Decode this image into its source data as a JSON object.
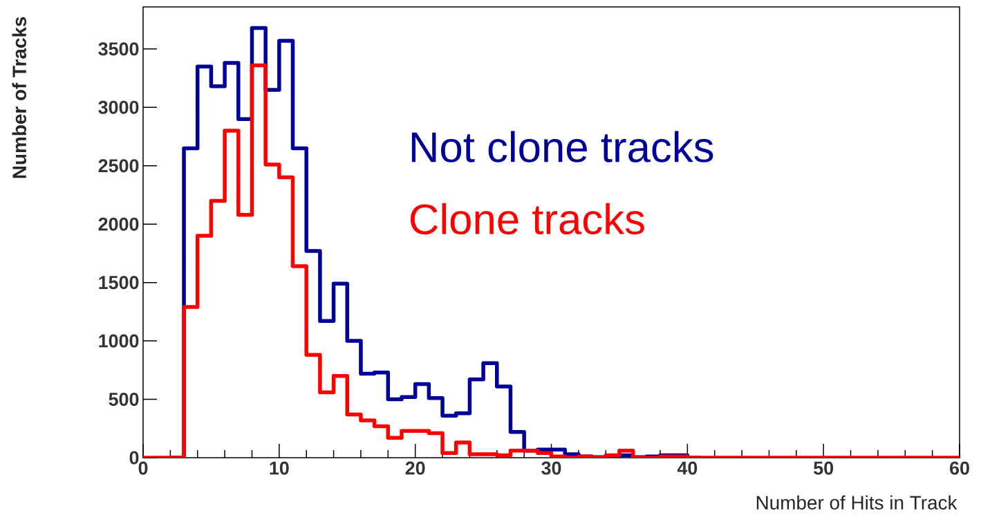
{
  "chart_data": {
    "type": "step",
    "xlabel": "Number of Hits in Track",
    "ylabel": "Number of Tracks",
    "x": [
      0,
      1,
      2,
      3,
      4,
      5,
      6,
      7,
      8,
      9,
      10,
      11,
      12,
      13,
      14,
      15,
      16,
      17,
      18,
      19,
      20,
      21,
      22,
      23,
      24,
      25,
      26,
      27,
      28,
      29,
      30,
      31,
      32,
      33,
      34,
      35,
      36,
      37,
      38,
      39,
      40,
      41,
      42,
      43,
      44,
      45,
      46,
      47,
      48,
      49,
      50,
      51,
      52,
      53,
      54,
      55,
      56,
      57,
      58,
      59,
      60
    ],
    "series": [
      {
        "name": "Not clone tracks",
        "color": "#000099",
        "values": [
          null,
          null,
          0,
          2650,
          3350,
          3180,
          3380,
          2900,
          3680,
          3150,
          3570,
          2650,
          1770,
          1170,
          1490,
          1000,
          720,
          730,
          500,
          520,
          630,
          510,
          360,
          380,
          670,
          810,
          610,
          220,
          60,
          70,
          70,
          30,
          10,
          5,
          10,
          20,
          5,
          10,
          20,
          20,
          0,
          0,
          null,
          null,
          null,
          null,
          null,
          null,
          null,
          null,
          null,
          null,
          null,
          null,
          null,
          null,
          null,
          null,
          null,
          null,
          null
        ]
      },
      {
        "name": "Clone tracks",
        "color": "#ff0000",
        "values": [
          0,
          0,
          0,
          1290,
          1900,
          2200,
          2800,
          2080,
          3360,
          2510,
          2400,
          1640,
          880,
          560,
          700,
          370,
          320,
          270,
          170,
          230,
          230,
          210,
          40,
          130,
          30,
          30,
          20,
          60,
          60,
          40,
          10,
          0,
          10,
          0,
          20,
          60,
          0,
          0,
          10,
          10,
          0,
          0,
          0,
          0,
          0,
          0,
          0,
          0,
          0,
          0,
          0,
          0,
          0,
          0,
          0,
          0,
          0,
          0,
          0,
          0,
          0
        ]
      }
    ],
    "xlim": [
      0,
      60
    ],
    "xticks": [
      0,
      10,
      20,
      30,
      40,
      50,
      60
    ],
    "ylim": [
      0,
      3860
    ],
    "yticks": [
      0,
      500,
      1000,
      1500,
      2000,
      2500,
      3000,
      3500
    ],
    "legend": false,
    "grid": false
  }
}
